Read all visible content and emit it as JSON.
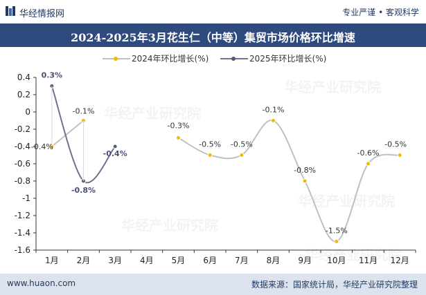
{
  "header": {
    "site_name": "华经情报网",
    "slogan": "专业严谨 • 客观科学"
  },
  "footer": {
    "website": "www.huaon.com",
    "source": "数据来源：国家统计局，华经产业研究院整理"
  },
  "watermark": "华经产业研究院",
  "colors": {
    "title_bar": "#2f4a7d",
    "series_2024_line": "#c0c0c0",
    "series_2024_marker": "#f5b800",
    "series_2025_line": "#6e7291",
    "series_2025_marker": "#555a7a",
    "footer_bg": "#dde3ec"
  },
  "chart_data": {
    "type": "line",
    "title": "2024-2025年3月花生仁（中等）集贸市场价格环比增速",
    "categories": [
      "1月",
      "2月",
      "3月",
      "4月",
      "5月",
      "6月",
      "7月",
      "8月",
      "9月",
      "10月",
      "11月",
      "12月"
    ],
    "series": [
      {
        "name": "2024年环比增长(%)",
        "values": [
          -0.4,
          -0.1,
          null,
          null,
          -0.3,
          -0.5,
          -0.5,
          -0.1,
          -0.8,
          -1.5,
          -0.6,
          -0.5
        ],
        "labels": [
          "-0.4%",
          "-0.1%",
          null,
          null,
          "-0.3%",
          "-0.5%",
          "-0.5%",
          "-0.1%",
          "-0.8%",
          "-1.5%",
          "-0.6%",
          "-0.5%"
        ],
        "smooth": true
      },
      {
        "name": "2025年环比增长(%)",
        "values": [
          0.3,
          -0.8,
          -0.4,
          null,
          null,
          null,
          null,
          null,
          null,
          null,
          null,
          null
        ],
        "labels": [
          "0.3%",
          "-0.8%",
          "-0.4%",
          null,
          null,
          null,
          null,
          null,
          null,
          null,
          null,
          null
        ],
        "smooth": true
      }
    ],
    "ylim": [
      -1.6,
      0.4
    ],
    "yticks": [
      0.4,
      0.2,
      0,
      -0.2,
      -0.4,
      -0.6,
      -0.8,
      -1,
      -1.2,
      -1.4,
      -1.6
    ],
    "grid": false,
    "legend_position": "top-left"
  }
}
